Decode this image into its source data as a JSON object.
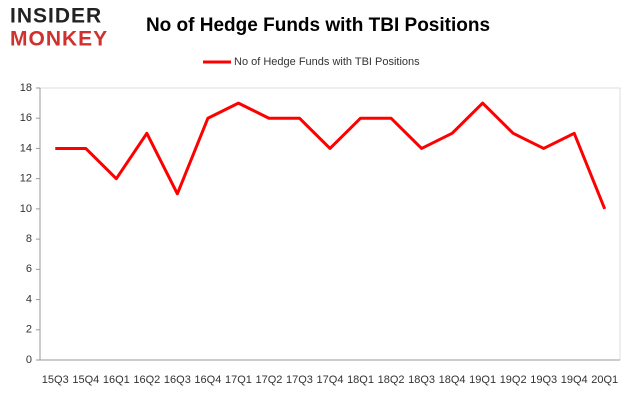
{
  "logo": {
    "top": "INSIDER",
    "bottom": "MONKEY"
  },
  "chart_data": {
    "type": "line",
    "title": "No of Hedge Funds with TBI Positions",
    "categories": [
      "15Q3",
      "15Q4",
      "16Q1",
      "16Q2",
      "16Q3",
      "16Q4",
      "17Q1",
      "17Q2",
      "17Q3",
      "17Q4",
      "18Q1",
      "18Q2",
      "18Q3",
      "18Q4",
      "19Q1",
      "19Q2",
      "19Q3",
      "19Q4",
      "20Q1"
    ],
    "series": [
      {
        "name": "No of Hedge Funds with TBI Positions",
        "color": "#ff0000",
        "values": [
          14,
          14,
          12,
          15,
          11,
          16,
          17,
          16,
          16,
          14,
          16,
          16,
          14,
          15,
          17,
          15,
          14,
          15,
          10
        ]
      }
    ],
    "ylim": [
      0,
      18
    ],
    "yticks": [
      0,
      2,
      4,
      6,
      8,
      10,
      12,
      14,
      16,
      18
    ],
    "legend": "top"
  }
}
